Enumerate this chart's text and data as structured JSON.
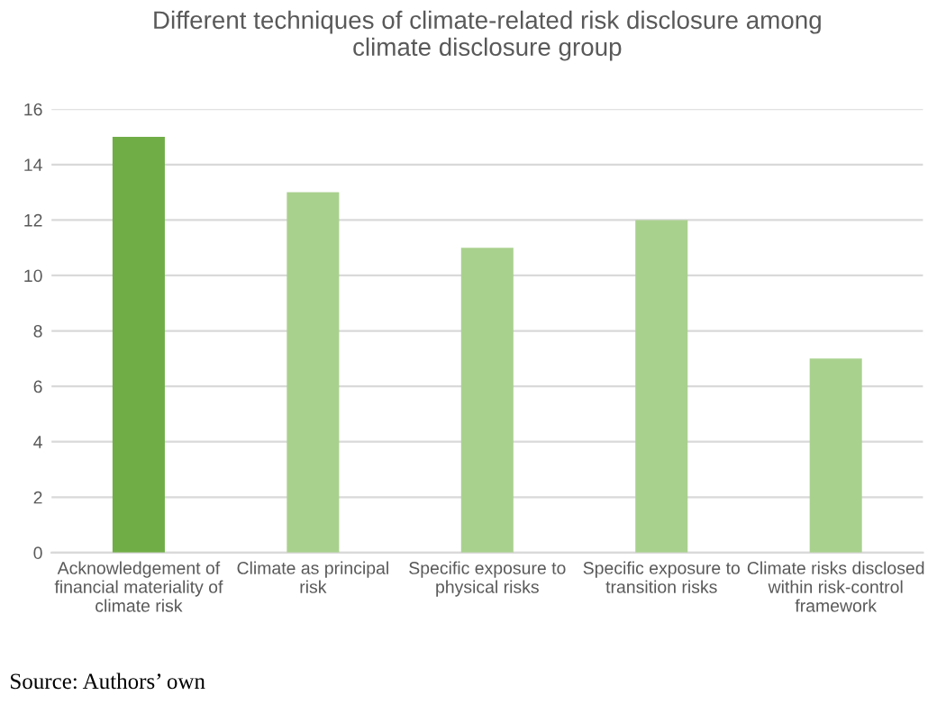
{
  "chart_data": {
    "type": "bar",
    "title": "Different techniques of climate-related risk disclosure among\nclimate disclosure group",
    "categories": [
      "Acknowledgement of\nfinancial materiality of\nclimate risk",
      "Climate as principal\nrisk",
      "Specific exposure to\nphysical risks",
      "Specific exposure to\ntransition risks",
      "Climate risks disclosed\nwithin risk-control\nframework"
    ],
    "values": [
      15,
      13,
      11,
      12,
      7
    ],
    "colors": [
      "#70ad47",
      "#a9d18e",
      "#a9d18e",
      "#a9d18e",
      "#a9d18e"
    ],
    "ylim": [
      0,
      16
    ],
    "yticks": [
      0,
      2,
      4,
      6,
      8,
      10,
      12,
      14,
      16
    ],
    "grid": "y",
    "legend": false,
    "annotations": [
      "Source: Authors’ own"
    ]
  }
}
